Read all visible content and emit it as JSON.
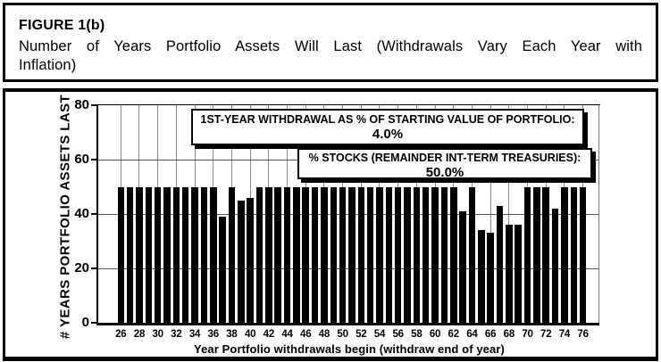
{
  "figure": {
    "label": "FIGURE 1(b)",
    "subtitle_lines": [
      "Number of Years Portfolio Assets Will Last (Withdrawals Vary Each Year with",
      "Inflation)"
    ]
  },
  "chart_data": {
    "type": "bar",
    "title": "Number of Years Portfolio Assets Will Last (Withdrawals Vary Each Year with Inflation)",
    "xlabel": "Year Portfolio withdrawals begin (withdraw end of year)",
    "ylabel": "# YEARS PORTFOLIO ASSETS LAST",
    "ylim": [
      0,
      80
    ],
    "yticks": [
      0,
      20,
      40,
      60,
      80
    ],
    "xtick_labels": [
      "26",
      "28",
      "30",
      "32",
      "34",
      "36",
      "38",
      "40",
      "42",
      "44",
      "46",
      "48",
      "50",
      "52",
      "54",
      "56",
      "58",
      "60",
      "62",
      "64",
      "66",
      "68",
      "70",
      "72",
      "74",
      "76"
    ],
    "x": [
      26,
      27,
      28,
      29,
      30,
      31,
      32,
      33,
      34,
      35,
      36,
      37,
      38,
      39,
      40,
      41,
      42,
      43,
      44,
      45,
      46,
      47,
      48,
      49,
      50,
      51,
      52,
      53,
      54,
      55,
      56,
      57,
      58,
      59,
      60,
      61,
      62,
      63,
      64,
      65,
      66,
      67,
      68,
      69,
      70,
      71,
      72,
      73,
      74,
      75,
      76
    ],
    "values": [
      50,
      50,
      50,
      50,
      50,
      50,
      50,
      50,
      50,
      50,
      50,
      39,
      50,
      45,
      46,
      50,
      50,
      50,
      50,
      50,
      50,
      50,
      50,
      50,
      50,
      50,
      50,
      50,
      50,
      50,
      50,
      50,
      50,
      50,
      50,
      50,
      50,
      41,
      50,
      34,
      33,
      43,
      36,
      36,
      50,
      50,
      50,
      42,
      50,
      50,
      50
    ],
    "grid": true,
    "legend_position": "none",
    "bar_color": "#000000",
    "background_color": "#ffffff",
    "annotations": [
      {
        "lines": [
          "1ST-YEAR WITHDRAWAL AS % OF STARTING VALUE OF PORTFOLIO:",
          "4.0%"
        ]
      },
      {
        "lines": [
          "% STOCKS (REMAINDER INT-TERM TREASURIES):",
          "50.0%"
        ]
      }
    ]
  }
}
